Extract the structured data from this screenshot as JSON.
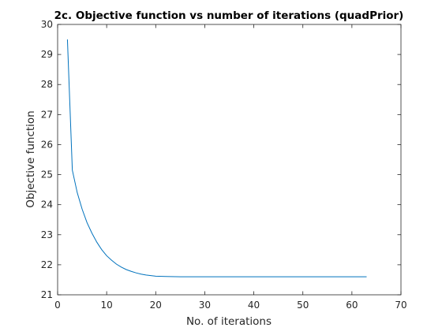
{
  "chart_data": {
    "type": "line",
    "title": "2c. Objective function vs number of iterations (quadPrior)",
    "xlabel": "No. of iterations",
    "ylabel": "Objective function",
    "xlim": [
      0,
      70
    ],
    "ylim": [
      21,
      30
    ],
    "xticks": [
      "0",
      "10",
      "20",
      "30",
      "40",
      "50",
      "60",
      "70"
    ],
    "yticks": [
      "21",
      "22",
      "23",
      "24",
      "25",
      "26",
      "27",
      "28",
      "29",
      "30"
    ],
    "grid": false,
    "box": true,
    "line_color": "#0072BD",
    "axis_color": "#262626",
    "series": [
      {
        "x": [
          2,
          3,
          4,
          5,
          6,
          7,
          8,
          9,
          10,
          11,
          12,
          13,
          14,
          15,
          16,
          17,
          18,
          19,
          20,
          22,
          25,
          30,
          35,
          40,
          45,
          50,
          55,
          60,
          63
        ],
        "values": [
          29.5,
          25.15,
          24.4,
          23.85,
          23.4,
          23.05,
          22.75,
          22.5,
          22.3,
          22.15,
          22.02,
          21.92,
          21.84,
          21.78,
          21.73,
          21.69,
          21.66,
          21.64,
          21.62,
          21.61,
          21.6,
          21.6,
          21.6,
          21.6,
          21.6,
          21.6,
          21.6,
          21.6,
          21.6
        ]
      }
    ]
  }
}
